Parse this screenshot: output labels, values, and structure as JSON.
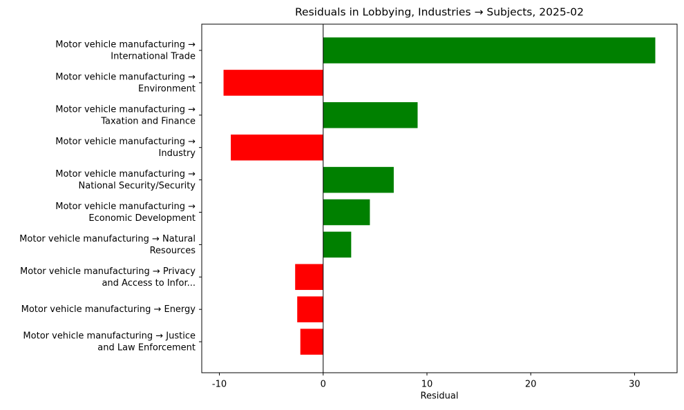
{
  "chart_data": {
    "type": "barh",
    "title": "Residuals in Lobbying, Industries → Subjects, 2025-02",
    "xlabel": "Residual",
    "categories": [
      [
        "Motor vehicle manufacturing →",
        "International Trade"
      ],
      [
        "Motor vehicle manufacturing →",
        "Environment"
      ],
      [
        "Motor vehicle manufacturing →",
        "Taxation and Finance"
      ],
      [
        "Motor vehicle manufacturing →",
        "Industry"
      ],
      [
        "Motor vehicle manufacturing →",
        "National Security/Security"
      ],
      [
        "Motor vehicle manufacturing →",
        "Economic Development"
      ],
      [
        "Motor vehicle manufacturing → Natural",
        "Resources"
      ],
      [
        "Motor vehicle manufacturing → Privacy",
        "and Access to Infor..."
      ],
      [
        "Motor vehicle manufacturing → Energy"
      ],
      [
        "Motor vehicle manufacturing → Justice",
        "and Law Enforcement"
      ]
    ],
    "values": [
      32.0,
      -9.6,
      9.1,
      -8.9,
      6.8,
      4.5,
      2.7,
      -2.7,
      -2.5,
      -2.2
    ],
    "colors": [
      "#008000",
      "#ff0000",
      "#008000",
      "#ff0000",
      "#008000",
      "#008000",
      "#008000",
      "#ff0000",
      "#ff0000",
      "#ff0000"
    ],
    "xlim": [
      -11.7,
      34.1
    ],
    "xticks": [
      -10,
      0,
      10,
      20,
      30
    ]
  }
}
